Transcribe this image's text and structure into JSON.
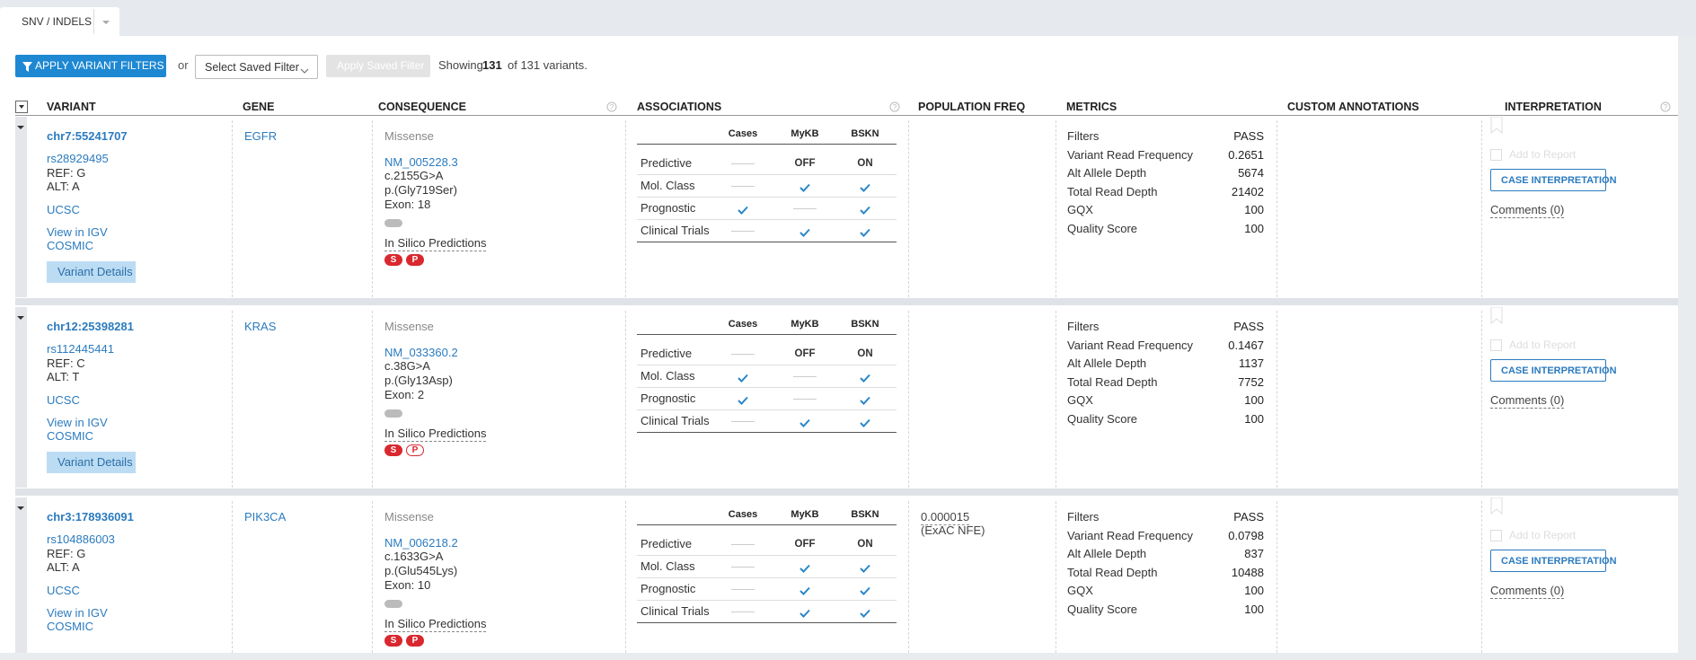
{
  "tab": "SNV / INDELS",
  "toolbar": {
    "apply_button": "APPLY VARIANT FILTERS",
    "or": "or",
    "saved_filter": "Select Saved Filter",
    "apply_saved": "Apply Saved Filter",
    "showing": "Showing",
    "shown": "131",
    "of": "of 131 variants."
  },
  "columns": [
    "VARIANT",
    "GENE",
    "CONSEQUENCE",
    "ASSOCIATIONS",
    "POPULATION FREQ",
    "METRICS",
    "CUSTOM ANNOTATIONS",
    "INTERPRETATION"
  ],
  "association_columns": [
    "Cases",
    "MyKB",
    "BSKN"
  ],
  "variants": [
    {
      "locus": "chr7:55241707",
      "rsid": "rs28929495",
      "ref": "REF: G",
      "alt": "ALT: A",
      "links": [
        "UCSC",
        "View in IGV",
        "COSMIC"
      ],
      "details": "Variant Details",
      "gene": "EGFR",
      "consequence": {
        "type": "Missense",
        "transcript": "NM_005228.3",
        "cdna": "c.2155G>A",
        "protein": "p.(Gly719Ser)",
        "exon": "Exon: 18",
        "in_silico": "In Silico Predictions",
        "predictions": [
          {
            "label": "S",
            "filled": true
          },
          {
            "label": "P",
            "filled": true
          }
        ]
      },
      "associations": [
        {
          "label": "Predictive",
          "cells": [
            false,
            "OFF",
            "ON"
          ]
        },
        {
          "label": "Mol. Class",
          "cells": [
            false,
            true,
            true
          ]
        },
        {
          "label": "Prognostic",
          "cells": [
            true,
            false,
            true
          ]
        },
        {
          "label": "Clinical Trials",
          "cells": [
            false,
            true,
            true
          ]
        }
      ],
      "metrics": [
        {
          "label": "Filters",
          "value": "PASS"
        },
        {
          "label": "Variant Read Frequency",
          "value": "0.2651"
        },
        {
          "label": "Alt Allele Depth",
          "value": "5674"
        },
        {
          "label": "Total Read Depth",
          "value": "21402"
        },
        {
          "label": "GQX",
          "value": "100"
        },
        {
          "label": "Quality Score",
          "value": "100"
        }
      ],
      "interpretation": {
        "add": "Add to Report",
        "button": "CASE INTERPRETATION",
        "comments": "Comments (0)"
      }
    },
    {
      "locus": "chr12:25398281",
      "rsid": "rs112445441",
      "ref": "REF: C",
      "alt": "ALT: T",
      "links": [
        "UCSC",
        "View in IGV",
        "COSMIC"
      ],
      "details": "Variant Details",
      "gene": "KRAS",
      "consequence": {
        "type": "Missense",
        "transcript": "NM_033360.2",
        "cdna": "c.38G>A",
        "protein": "p.(Gly13Asp)",
        "exon": "Exon: 2",
        "in_silico": "In Silico Predictions",
        "predictions": [
          {
            "label": "S",
            "filled": true
          },
          {
            "label": "P",
            "filled": false
          }
        ]
      },
      "associations": [
        {
          "label": "Predictive",
          "cells": [
            false,
            "OFF",
            "ON"
          ]
        },
        {
          "label": "Mol. Class",
          "cells": [
            true,
            false,
            true
          ]
        },
        {
          "label": "Prognostic",
          "cells": [
            true,
            false,
            true
          ]
        },
        {
          "label": "Clinical Trials",
          "cells": [
            false,
            true,
            true
          ]
        }
      ],
      "metrics": [
        {
          "label": "Filters",
          "value": "PASS"
        },
        {
          "label": "Variant Read Frequency",
          "value": "0.1467"
        },
        {
          "label": "Alt Allele Depth",
          "value": "1137"
        },
        {
          "label": "Total Read Depth",
          "value": "7752"
        },
        {
          "label": "GQX",
          "value": "100"
        },
        {
          "label": "Quality Score",
          "value": "100"
        }
      ],
      "interpretation": {
        "add": "Add to Report",
        "button": "CASE INTERPRETATION",
        "comments": "Comments (0)"
      }
    },
    {
      "locus": "chr3:178936091",
      "rsid": "rs104886003",
      "ref": "REF: G",
      "alt": "ALT: A",
      "links": [
        "UCSC",
        "View in IGV",
        "COSMIC"
      ],
      "gene": "PIK3CA",
      "consequence": {
        "type": "Missense",
        "transcript": "NM_006218.2",
        "cdna": "c.1633G>A",
        "protein": "p.(Glu545Lys)",
        "exon": "Exon: 10",
        "in_silico": "In Silico Predictions",
        "predictions": [
          {
            "label": "S",
            "filled": true
          },
          {
            "label": "P",
            "filled": true
          }
        ]
      },
      "associations": [
        {
          "label": "Predictive",
          "cells": [
            false,
            "OFF",
            "ON"
          ]
        },
        {
          "label": "Mol. Class",
          "cells": [
            false,
            true,
            true
          ]
        },
        {
          "label": "Prognostic",
          "cells": [
            false,
            true,
            true
          ]
        },
        {
          "label": "Clinical Trials",
          "cells": [
            false,
            true,
            true
          ]
        }
      ],
      "population": {
        "freq": "0.000015",
        "source": "(ExAC NFE)"
      },
      "metrics": [
        {
          "label": "Filters",
          "value": "PASS"
        },
        {
          "label": "Variant Read Frequency",
          "value": "0.0798"
        },
        {
          "label": "Alt Allele Depth",
          "value": "837"
        },
        {
          "label": "Total Read Depth",
          "value": "10488"
        },
        {
          "label": "GQX",
          "value": "100"
        },
        {
          "label": "Quality Score",
          "value": "100"
        }
      ],
      "interpretation": {
        "add": "Add to Report",
        "button": "CASE INTERPRETATION",
        "comments": "Comments (0)"
      }
    }
  ]
}
